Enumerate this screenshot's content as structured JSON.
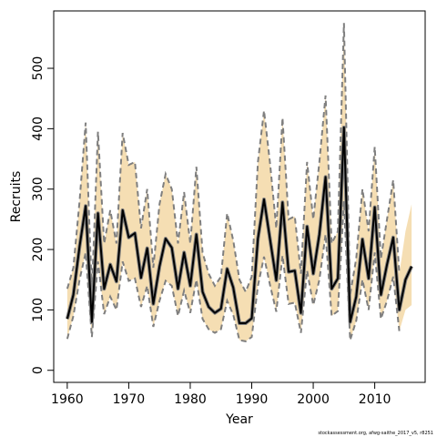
{
  "chart_data": {
    "type": "line",
    "xlabel": "Year",
    "ylabel": "Recruits",
    "xlim": [
      1957.8,
      2018.2
    ],
    "ylim": [
      -20,
      595
    ],
    "x_ticks": [
      1960,
      1970,
      1980,
      1990,
      2000,
      2010
    ],
    "y_ticks": [
      0,
      100,
      200,
      300,
      400,
      500
    ],
    "credit": "stockassessment.org, afwg-saithe_2017_v5, r8251",
    "colors": {
      "band": "#f5deb3",
      "bounds": "#7f7f7f",
      "line": "#000000",
      "line_outline": "#7f7f7f"
    },
    "series": [
      {
        "x": [
          1960,
          1961,
          1962,
          1963,
          1964,
          1965,
          1966,
          1967,
          1968,
          1969,
          1970,
          1971,
          1972,
          1973,
          1974,
          1975,
          1976,
          1977,
          1978,
          1979,
          1980,
          1981,
          1982,
          1983,
          1984,
          1985,
          1986,
          1987,
          1988,
          1989,
          1990,
          1991,
          1992,
          1993,
          1994,
          1995,
          1996,
          1997,
          1998,
          1999,
          2000,
          2001,
          2002,
          2003,
          2004,
          2005,
          2006,
          2007,
          2008,
          2009,
          2010,
          2011,
          2012,
          2013,
          2014,
          2015,
          2016
        ],
        "estimate": [
          85,
          125,
          205,
          272,
          80,
          260,
          135,
          175,
          147,
          265,
          220,
          227,
          153,
          202,
          110,
          172,
          218,
          203,
          135,
          195,
          140,
          225,
          130,
          105,
          95,
          102,
          168,
          137,
          78,
          78,
          86,
          218,
          283,
          215,
          149,
          278,
          163,
          165,
          95,
          238,
          160,
          225,
          320,
          135,
          152,
          402,
          80,
          122,
          217,
          152,
          270,
          125,
          175,
          220,
          100,
          150,
          172
        ],
        "upper": [
          135,
          170,
          280,
          410,
          130,
          395,
          210,
          265,
          210,
          393,
          340,
          345,
          235,
          300,
          170,
          275,
          325,
          300,
          210,
          295,
          210,
          337,
          195,
          160,
          140,
          155,
          260,
          215,
          150,
          130,
          155,
          345,
          430,
          340,
          235,
          418,
          250,
          255,
          160,
          345,
          250,
          345,
          455,
          210,
          230,
          575,
          125,
          185,
          300,
          230,
          370,
          185,
          250,
          315,
          160,
          230,
          275
        ],
        "lower": [
          52,
          90,
          150,
          195,
          55,
          180,
          93,
          122,
          100,
          180,
          148,
          152,
          105,
          140,
          72,
          115,
          148,
          140,
          90,
          132,
          95,
          150,
          85,
          68,
          62,
          68,
          115,
          92,
          50,
          48,
          55,
          140,
          188,
          140,
          97,
          190,
          110,
          112,
          62,
          165,
          108,
          150,
          225,
          90,
          98,
          280,
          50,
          82,
          150,
          100,
          195,
          85,
          115,
          155,
          65,
          100,
          108
        ],
        "line_end_year": 2014
      }
    ]
  }
}
